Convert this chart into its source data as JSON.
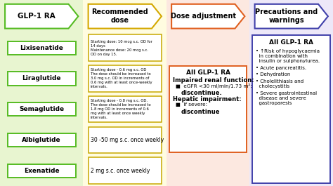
{
  "col1_bg": "#e8f5d0",
  "col2_bg": "#fffce0",
  "col3_bg": "#fce8e0",
  "col4_bg": "#ede8f8",
  "header1_text": "GLP-1 RA",
  "header2_text": "Recommended\ndose",
  "header3_text": "Dose adjustment",
  "header4_text": "Precautions and\nwarnings",
  "header1_edge": "#55bb22",
  "header2_edge": "#d4a800",
  "header3_edge": "#e06020",
  "header4_edge": "#4040aa",
  "drugs": [
    "Lixisenatide",
    "Liraglutide",
    "Semaglutide",
    "Albiglutide",
    "Exenatide"
  ],
  "drug_edge": "#55bb22",
  "dose_edge": "#c8a800",
  "dose_texts": [
    "Starting dose: 10 mcg s.c. OD for\n14 days\nMaintenance dose: 20 mcg s.c.\nOD on day 15.",
    "Starting dose - 0.6 mg s.c. OD\nThe dose should be increased to\n3.0 mg s.c. OD in increments of\n0.6 mg with at least once-weekly\nintervals.",
    "Starting dose - 0.8 mg s.c. OD.\nThe dose should be increased to\n1.8 mg OD in increments of 0.6\nmg with at least once weekly\nintervals.",
    "30 -50 mg s.c. once weekly",
    "2 mg s.c. once weekly"
  ],
  "adj_edge": "#e06020",
  "adj_title": "All GLP-1 RA",
  "adj_lines": [
    {
      "text": "Impaired renal function:",
      "style": "bold",
      "indent": 0
    },
    {
      "text": "■  eGFR <30 ml/min/1.73 m²:",
      "style": "normal",
      "indent": 4
    },
    {
      "text": "discontinue.",
      "style": "bold",
      "indent": 12
    },
    {
      "text": "Hepatic impairment:",
      "style": "bold",
      "indent": 0
    },
    {
      "text": "■  If severe:",
      "style": "normal",
      "indent": 4
    },
    {
      "text": "discontinue",
      "style": "bold",
      "indent": 12
    }
  ],
  "prec_edge": "#4040aa",
  "prec_title": "All GLP-1 RA",
  "prec_bullets": [
    "↑Risk of hypoglycaemia\n  in combination with\n  insulin or sulphonylurea.",
    "Acute pancreatitis.",
    "Dehydration",
    "Cholelithiasis and\n  cholecystitis",
    "Severe gastrointestinal\n  disease and severe\n  gastroparesis"
  ]
}
